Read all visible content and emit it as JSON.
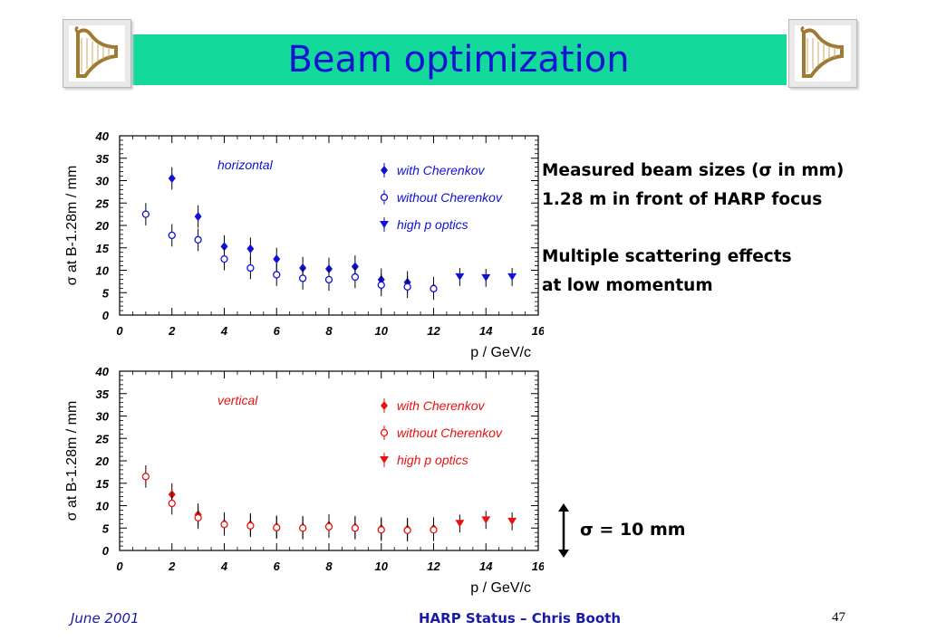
{
  "slide": {
    "title": "Beam optimization",
    "notes": [
      "Measured beam sizes (σ in mm)",
      "1.28 m in front of HARP focus",
      "Multiple scattering effects",
      "at low momentum"
    ],
    "scale_note": "σ = 10 mm"
  },
  "footer": {
    "date": "June 2001",
    "author": "HARP Status – Chris Booth",
    "page": "47"
  },
  "colors": {
    "title_bar": "#13d99b",
    "title_text": "#1414d2",
    "horizontal": "#1010d8",
    "vertical": "#e81010"
  },
  "chart_data": [
    {
      "type": "scatter",
      "annotation": "horizontal",
      "xlabel": "p / GeV/c",
      "ylabel": "σ at B-1.28m / mm",
      "xlim": [
        0,
        16
      ],
      "ylim": [
        0,
        40
      ],
      "xticks": [
        "0",
        "2",
        "4",
        "6",
        "8",
        "10",
        "12",
        "14",
        "16"
      ],
      "yticks": [
        "0",
        "5",
        "10",
        "15",
        "20",
        "25",
        "30",
        "35",
        "40"
      ],
      "legend_position": "top-right",
      "series": [
        {
          "name": "with Cherenkov",
          "marker": "filled-diamond",
          "x": [
            2,
            3,
            4,
            5,
            6,
            7,
            8,
            9,
            10,
            11,
            12
          ],
          "y": [
            30.5,
            22,
            15.3,
            14.8,
            12.5,
            10.5,
            10.3,
            10.8,
            7.9,
            7.3,
            6.0
          ],
          "err": [
            2.5,
            2.5,
            2.5,
            2.5,
            2.5,
            2.5,
            2.5,
            2.5,
            2.5,
            2.5,
            2.5
          ]
        },
        {
          "name": "without Cherenkov",
          "marker": "open-circle",
          "x": [
            1,
            2,
            3,
            4,
            5,
            6,
            7,
            8,
            9,
            10,
            11,
            12
          ],
          "y": [
            22.5,
            17.8,
            16.8,
            12.5,
            10.5,
            9.0,
            8.2,
            7.9,
            8.5,
            6.7,
            6.3,
            5.9
          ],
          "err": [
            2.5,
            2.5,
            2.5,
            2.5,
            2.5,
            2.5,
            2.5,
            2.5,
            2.5,
            2.5,
            2.5,
            2.5
          ]
        },
        {
          "name": "high p optics",
          "marker": "filled-triangle-down",
          "x": [
            13,
            14,
            15
          ],
          "y": [
            8.5,
            8.3,
            8.5
          ],
          "err": [
            2.0,
            2.0,
            2.0
          ]
        }
      ]
    },
    {
      "type": "scatter",
      "annotation": "vertical",
      "xlabel": "p / GeV/c",
      "ylabel": "σ at B-1.28m / mm",
      "xlim": [
        0,
        16
      ],
      "ylim": [
        0,
        40
      ],
      "xticks": [
        "0",
        "2",
        "4",
        "6",
        "8",
        "10",
        "12",
        "14",
        "16"
      ],
      "yticks": [
        "0",
        "5",
        "10",
        "15",
        "20",
        "25",
        "30",
        "35",
        "40"
      ],
      "legend_position": "top-right",
      "series": [
        {
          "name": "with Cherenkov",
          "marker": "filled-diamond",
          "x": [
            2,
            3,
            4,
            5,
            6,
            7,
            8,
            9,
            10,
            11,
            12
          ],
          "y": [
            12.5,
            8.0,
            6.0,
            5.8,
            5.3,
            5.2,
            5.6,
            5.2,
            4.9,
            4.8,
            4.9
          ],
          "err": [
            2.5,
            2.5,
            2.5,
            2.5,
            2.5,
            2.5,
            2.5,
            2.5,
            2.5,
            2.5,
            2.5
          ]
        },
        {
          "name": "without Cherenkov",
          "marker": "open-circle",
          "x": [
            1,
            2,
            3,
            4,
            5,
            6,
            7,
            8,
            9,
            10,
            11,
            12
          ],
          "y": [
            16.5,
            10.5,
            7.3,
            5.8,
            5.5,
            5.1,
            5.0,
            5.3,
            5.0,
            4.6,
            4.5,
            4.6
          ],
          "err": [
            2.5,
            2.5,
            2.5,
            2.5,
            2.5,
            2.5,
            2.5,
            2.5,
            2.5,
            2.5,
            2.5,
            2.5
          ]
        },
        {
          "name": "high p optics",
          "marker": "filled-triangle-down",
          "x": [
            13,
            14,
            15
          ],
          "y": [
            6.0,
            6.8,
            6.5
          ],
          "err": [
            2.0,
            2.0,
            2.0
          ]
        }
      ]
    }
  ]
}
